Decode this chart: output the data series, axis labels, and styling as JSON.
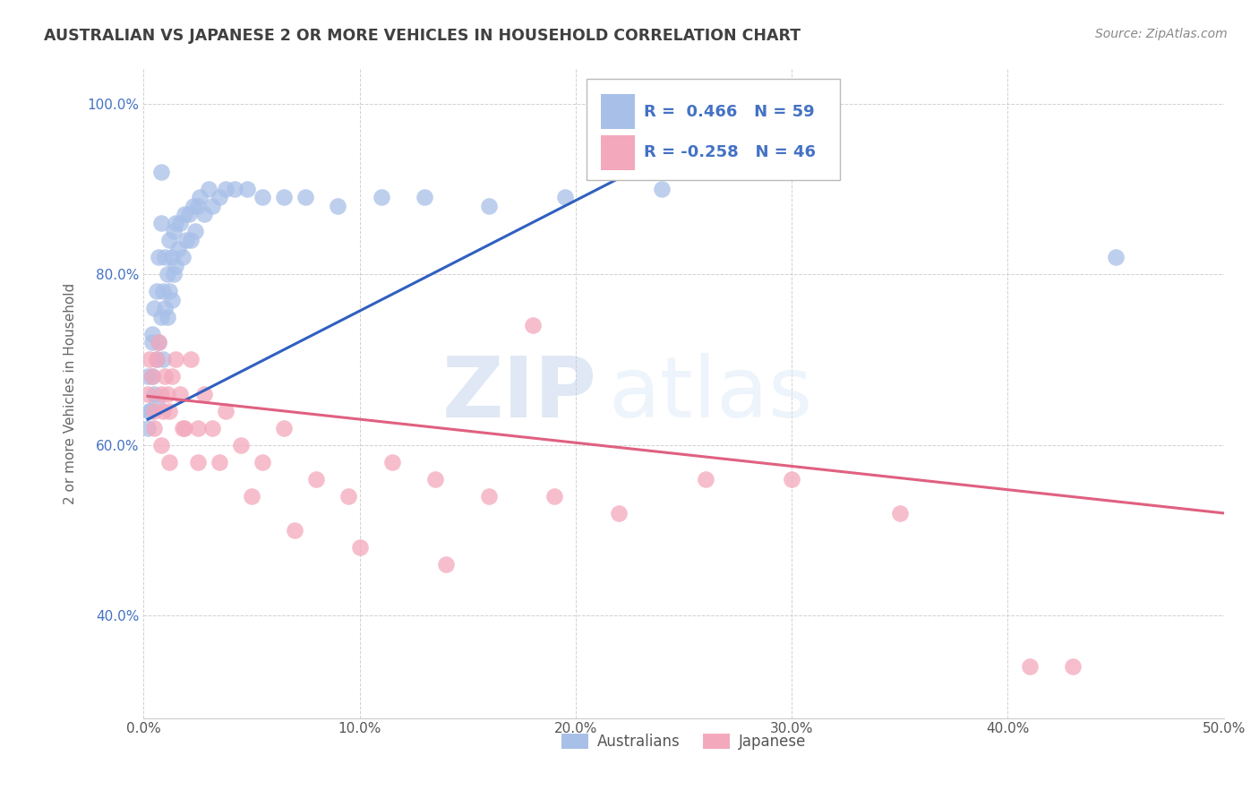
{
  "title": "AUSTRALIAN VS JAPANESE 2 OR MORE VEHICLES IN HOUSEHOLD CORRELATION CHART",
  "source": "Source: ZipAtlas.com",
  "ylabel": "2 or more Vehicles in Household",
  "xlim": [
    0.0,
    0.5
  ],
  "ylim": [
    0.28,
    1.04
  ],
  "xtick_labels": [
    "0.0%",
    "10.0%",
    "20.0%",
    "30.0%",
    "40.0%",
    "50.0%"
  ],
  "xtick_vals": [
    0.0,
    0.1,
    0.2,
    0.3,
    0.4,
    0.5
  ],
  "ytick_labels": [
    "40.0%",
    "60.0%",
    "80.0%",
    "100.0%"
  ],
  "ytick_vals": [
    0.4,
    0.6,
    0.8,
    1.0
  ],
  "legend_label1": "Australians",
  "legend_label2": "Japanese",
  "r1": 0.466,
  "n1": 59,
  "r2": -0.258,
  "n2": 46,
  "color1": "#a8c0e8",
  "color2": "#f4a8bc",
  "line_color1": "#3060c0",
  "line_color2": "#e06080",
  "watermark_zip": "ZIP",
  "watermark_atlas": "atlas",
  "title_color": "#404040",
  "source_color": "#888888",
  "aus_scatter_x": [
    0.002,
    0.003,
    0.004,
    0.004,
    0.005,
    0.005,
    0.006,
    0.006,
    0.007,
    0.007,
    0.008,
    0.008,
    0.009,
    0.009,
    0.01,
    0.01,
    0.011,
    0.011,
    0.012,
    0.012,
    0.013,
    0.013,
    0.014,
    0.014,
    0.015,
    0.015,
    0.016,
    0.017,
    0.018,
    0.019,
    0.02,
    0.021,
    0.022,
    0.023,
    0.024,
    0.025,
    0.026,
    0.028,
    0.03,
    0.032,
    0.035,
    0.038,
    0.042,
    0.048,
    0.055,
    0.065,
    0.075,
    0.09,
    0.11,
    0.13,
    0.16,
    0.195,
    0.24,
    0.002,
    0.003,
    0.004,
    0.006,
    0.008,
    0.45
  ],
  "aus_scatter_y": [
    0.62,
    0.64,
    0.72,
    0.68,
    0.66,
    0.76,
    0.65,
    0.7,
    0.72,
    0.82,
    0.75,
    0.86,
    0.7,
    0.78,
    0.76,
    0.82,
    0.75,
    0.8,
    0.78,
    0.84,
    0.77,
    0.82,
    0.8,
    0.85,
    0.81,
    0.86,
    0.83,
    0.86,
    0.82,
    0.87,
    0.84,
    0.87,
    0.84,
    0.88,
    0.85,
    0.88,
    0.89,
    0.87,
    0.9,
    0.88,
    0.89,
    0.9,
    0.9,
    0.9,
    0.89,
    0.89,
    0.89,
    0.88,
    0.89,
    0.89,
    0.88,
    0.89,
    0.9,
    0.68,
    0.64,
    0.73,
    0.78,
    0.92,
    0.82
  ],
  "jap_scatter_x": [
    0.002,
    0.003,
    0.004,
    0.005,
    0.006,
    0.007,
    0.008,
    0.009,
    0.01,
    0.011,
    0.012,
    0.013,
    0.015,
    0.017,
    0.019,
    0.022,
    0.025,
    0.028,
    0.032,
    0.038,
    0.045,
    0.055,
    0.065,
    0.08,
    0.095,
    0.115,
    0.135,
    0.16,
    0.19,
    0.22,
    0.26,
    0.3,
    0.35,
    0.41,
    0.005,
    0.008,
    0.012,
    0.018,
    0.025,
    0.035,
    0.05,
    0.07,
    0.1,
    0.14,
    0.18,
    0.43
  ],
  "jap_scatter_y": [
    0.66,
    0.7,
    0.68,
    0.64,
    0.7,
    0.72,
    0.66,
    0.64,
    0.68,
    0.66,
    0.64,
    0.68,
    0.7,
    0.66,
    0.62,
    0.7,
    0.62,
    0.66,
    0.62,
    0.64,
    0.6,
    0.58,
    0.62,
    0.56,
    0.54,
    0.58,
    0.56,
    0.54,
    0.54,
    0.52,
    0.56,
    0.56,
    0.52,
    0.34,
    0.62,
    0.6,
    0.58,
    0.62,
    0.58,
    0.58,
    0.54,
    0.5,
    0.48,
    0.46,
    0.74,
    0.34
  ]
}
